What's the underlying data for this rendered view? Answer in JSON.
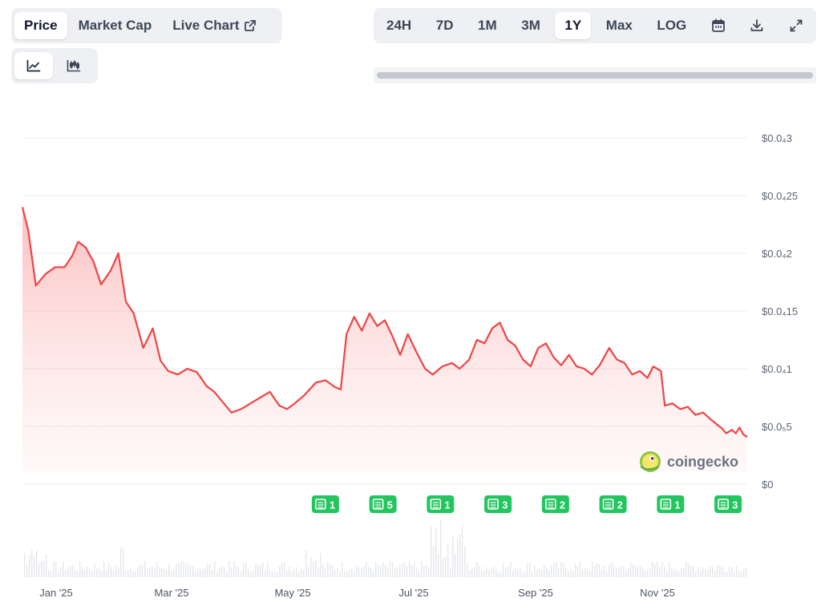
{
  "tabs": [
    {
      "label": "Price",
      "active": true
    },
    {
      "label": "Market Cap",
      "active": false
    },
    {
      "label": "Live Chart",
      "active": false,
      "icon": "external-link-icon"
    }
  ],
  "chart_type_buttons": [
    {
      "icon": "line-chart-icon",
      "active": true
    },
    {
      "icon": "candlestick-chart-icon",
      "active": false
    }
  ],
  "ranges": [
    {
      "label": "24H",
      "active": false
    },
    {
      "label": "7D",
      "active": false
    },
    {
      "label": "1M",
      "active": false
    },
    {
      "label": "3M",
      "active": false
    },
    {
      "label": "1Y",
      "active": true
    },
    {
      "label": "Max",
      "active": false
    },
    {
      "label": "LOG",
      "active": false
    }
  ],
  "tool_icons": [
    "calendar-icon",
    "download-icon",
    "fullscreen-icon"
  ],
  "watermark": "coingecko",
  "colors": {
    "line": "#ef4444",
    "fill": "#fde2e2",
    "news": "#22c55e",
    "volume": "#e5e7eb",
    "active_tab_bg": "#ffffff",
    "segment_bg": "#eef0f3"
  },
  "chart_data": {
    "type": "area",
    "x_ticks": [
      "Jan '25",
      "Mar '25",
      "May '25",
      "Jul '25",
      "Sep '25",
      "Nov '25"
    ],
    "y_ticks": [
      {
        "value": 0,
        "label": "$0"
      },
      {
        "value": 0.5,
        "label": "$0.0₅5"
      },
      {
        "value": 1,
        "label": "$0.0₄1"
      },
      {
        "value": 1.5,
        "label": "$0.0₄15"
      },
      {
        "value": 2,
        "label": "$0.0₄2"
      },
      {
        "value": 2.5,
        "label": "$0.0₄25"
      },
      {
        "value": 3,
        "label": "$0.0₄3"
      }
    ],
    "y_unit_note": "values in units of 0.00001 USD",
    "ylim": [
      0,
      3
    ],
    "xlim": [
      "2024-12-10",
      "2025-12-23"
    ],
    "series": [
      {
        "values": [
          [
            "2024-12-10",
            2.4
          ],
          [
            "2024-12-13",
            2.2
          ],
          [
            "2024-12-17",
            1.72
          ],
          [
            "2024-12-22",
            1.82
          ],
          [
            "2024-12-27",
            1.88
          ],
          [
            "2025-01-01",
            1.88
          ],
          [
            "2025-01-05",
            1.98
          ],
          [
            "2025-01-08",
            2.1
          ],
          [
            "2025-01-12",
            2.05
          ],
          [
            "2025-01-16",
            1.93
          ],
          [
            "2025-01-20",
            1.73
          ],
          [
            "2025-01-25",
            1.85
          ],
          [
            "2025-01-29",
            2.0
          ],
          [
            "2025-02-02",
            1.58
          ],
          [
            "2025-02-06",
            1.48
          ],
          [
            "2025-02-11",
            1.18
          ],
          [
            "2025-02-16",
            1.35
          ],
          [
            "2025-02-20",
            1.07
          ],
          [
            "2025-02-24",
            0.98
          ],
          [
            "2025-03-01",
            0.95
          ],
          [
            "2025-03-06",
            1.0
          ],
          [
            "2025-03-11",
            0.97
          ],
          [
            "2025-03-16",
            0.85
          ],
          [
            "2025-03-20",
            0.8
          ],
          [
            "2025-03-24",
            0.72
          ],
          [
            "2025-03-29",
            0.62
          ],
          [
            "2025-04-03",
            0.65
          ],
          [
            "2025-04-08",
            0.7
          ],
          [
            "2025-04-13",
            0.75
          ],
          [
            "2025-04-18",
            0.8
          ],
          [
            "2025-04-23",
            0.68
          ],
          [
            "2025-04-27",
            0.65
          ],
          [
            "2025-05-01",
            0.7
          ],
          [
            "2025-05-06",
            0.77
          ],
          [
            "2025-05-12",
            0.88
          ],
          [
            "2025-05-17",
            0.9
          ],
          [
            "2025-05-22",
            0.84
          ],
          [
            "2025-05-25",
            0.82
          ],
          [
            "2025-05-28",
            1.3
          ],
          [
            "2025-06-01",
            1.45
          ],
          [
            "2025-06-05",
            1.33
          ],
          [
            "2025-06-09",
            1.48
          ],
          [
            "2025-06-13",
            1.37
          ],
          [
            "2025-06-17",
            1.42
          ],
          [
            "2025-06-21",
            1.28
          ],
          [
            "2025-06-25",
            1.12
          ],
          [
            "2025-06-29",
            1.3
          ],
          [
            "2025-07-03",
            1.16
          ],
          [
            "2025-07-08",
            1.0
          ],
          [
            "2025-07-12",
            0.95
          ],
          [
            "2025-07-17",
            1.02
          ],
          [
            "2025-07-22",
            1.05
          ],
          [
            "2025-07-26",
            1.0
          ],
          [
            "2025-07-31",
            1.08
          ],
          [
            "2025-08-04",
            1.25
          ],
          [
            "2025-08-08",
            1.22
          ],
          [
            "2025-08-12",
            1.35
          ],
          [
            "2025-08-16",
            1.4
          ],
          [
            "2025-08-20",
            1.25
          ],
          [
            "2025-08-24",
            1.2
          ],
          [
            "2025-08-28",
            1.08
          ],
          [
            "2025-09-01",
            1.02
          ],
          [
            "2025-09-05",
            1.18
          ],
          [
            "2025-09-09",
            1.22
          ],
          [
            "2025-09-13",
            1.1
          ],
          [
            "2025-09-17",
            1.03
          ],
          [
            "2025-09-21",
            1.12
          ],
          [
            "2025-09-25",
            1.02
          ],
          [
            "2025-09-29",
            1.0
          ],
          [
            "2025-10-03",
            0.95
          ],
          [
            "2025-10-07",
            1.03
          ],
          [
            "2025-10-12",
            1.18
          ],
          [
            "2025-10-16",
            1.08
          ],
          [
            "2025-10-20",
            1.05
          ],
          [
            "2025-10-24",
            0.95
          ],
          [
            "2025-10-28",
            0.98
          ],
          [
            "2025-11-01",
            0.92
          ],
          [
            "2025-11-04",
            1.02
          ],
          [
            "2025-11-08",
            0.98
          ],
          [
            "2025-11-10",
            0.68
          ],
          [
            "2025-11-14",
            0.7
          ],
          [
            "2025-11-18",
            0.65
          ],
          [
            "2025-11-22",
            0.67
          ],
          [
            "2025-11-26",
            0.6
          ],
          [
            "2025-11-30",
            0.62
          ],
          [
            "2025-12-04",
            0.56
          ],
          [
            "2025-12-07",
            0.52
          ],
          [
            "2025-12-10",
            0.48
          ],
          [
            "2025-12-12",
            0.44
          ],
          [
            "2025-12-15",
            0.47
          ],
          [
            "2025-12-17",
            0.44
          ],
          [
            "2025-12-19",
            0.49
          ],
          [
            "2025-12-21",
            0.43
          ],
          [
            "2025-12-23",
            0.41
          ]
        ]
      }
    ],
    "news_markers": [
      {
        "date": "2025-05-17",
        "count": "1"
      },
      {
        "date": "2025-06-16",
        "count": "5"
      },
      {
        "date": "2025-07-16",
        "count": "1"
      },
      {
        "date": "2025-08-15",
        "count": "3"
      },
      {
        "date": "2025-09-14",
        "count": "2"
      },
      {
        "date": "2025-10-14",
        "count": "2"
      },
      {
        "date": "2025-11-13",
        "count": "1"
      },
      {
        "date": "2025-12-13",
        "count": "3"
      }
    ],
    "volume_note": "relative trading volume bars below price",
    "grid": true
  }
}
